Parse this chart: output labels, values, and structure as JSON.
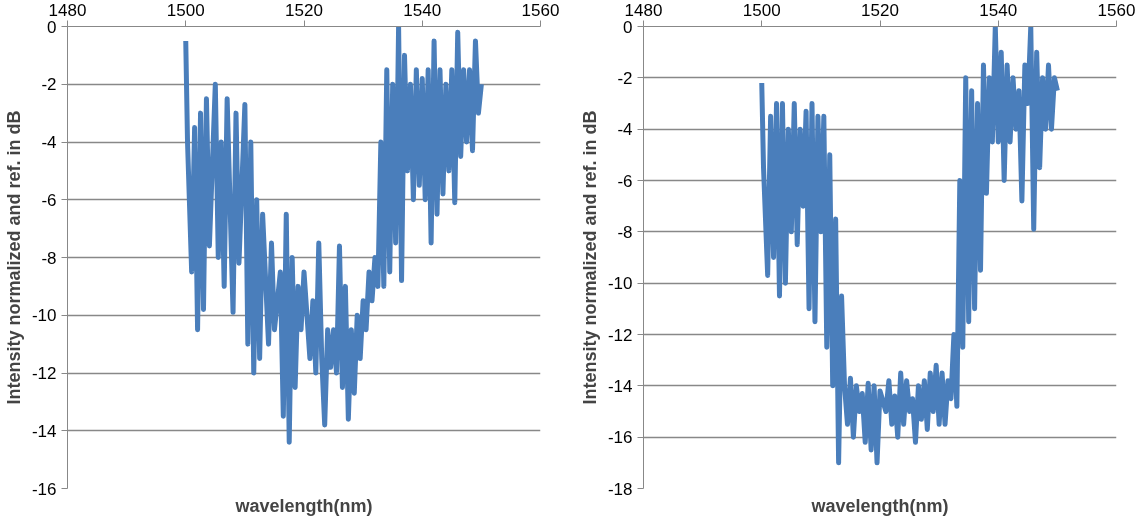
{
  "chart_data": [
    {
      "type": "line",
      "xlabel": "wavelength(nm)",
      "ylabel": "Intensity normalized and ref. in dB",
      "xlim": [
        1480,
        1560
      ],
      "xticks": [
        1480,
        1500,
        1520,
        1540,
        1560
      ],
      "ylim": [
        -16,
        0
      ],
      "yticks": [
        -16,
        -14,
        -12,
        -10,
        -8,
        -6,
        -4,
        -2,
        0
      ],
      "grid": "y",
      "x": [
        1500,
        1500.3,
        1501,
        1501.5,
        1502,
        1502.5,
        1503,
        1503.5,
        1504,
        1505,
        1505.5,
        1506,
        1506.5,
        1507,
        1508,
        1508.5,
        1509,
        1510,
        1510.5,
        1511,
        1511.5,
        1512,
        1512.5,
        1513,
        1514,
        1514.5,
        1515,
        1516,
        1516.5,
        1517,
        1517.5,
        1518,
        1518.5,
        1519,
        1519.5,
        1520,
        1521,
        1521.5,
        1522,
        1522.5,
        1523,
        1523.5,
        1524,
        1524.5,
        1525,
        1525.5,
        1526,
        1526.5,
        1527,
        1527.5,
        1528,
        1528.5,
        1529,
        1529.5,
        1530,
        1530.5,
        1531,
        1531.5,
        1532,
        1532.5,
        1533,
        1533.5,
        1534,
        1534.5,
        1535,
        1535.5,
        1536,
        1536.5,
        1537,
        1537.5,
        1538,
        1538.5,
        1539,
        1539.5,
        1540,
        1540.5,
        1541,
        1541.5,
        1542,
        1542.5,
        1543,
        1543.5,
        1544,
        1544.5,
        1545,
        1545.5,
        1546,
        1546.5,
        1547,
        1547.5,
        1548,
        1548.5,
        1549,
        1549.5,
        1550
      ],
      "series": [
        {
          "color": "#4a7ebb",
          "values": [
            -0.5,
            -4,
            -8.5,
            -3.5,
            -10.5,
            -3,
            -9.8,
            -2.5,
            -7.6,
            -2,
            -8,
            -4,
            -9,
            -2.5,
            -9.9,
            -3,
            -8.2,
            -2.7,
            -11,
            -4,
            -12,
            -6,
            -11.5,
            -6.5,
            -11,
            -7.5,
            -10.5,
            -8.5,
            -13.5,
            -6.5,
            -14.4,
            -8,
            -12.5,
            -9,
            -10.5,
            -8.5,
            -11.5,
            -9.5,
            -12,
            -7.5,
            -11.5,
            -13.8,
            -10.5,
            -11.8,
            -10.5,
            -12,
            -7.6,
            -12.5,
            -9,
            -13.6,
            -10.5,
            -12.7,
            -10,
            -11.5,
            -9.5,
            -10.5,
            -8.5,
            -9.5,
            -8,
            -9,
            -4,
            -9,
            -1.5,
            -8.5,
            -2,
            -7.5,
            0,
            -8.8,
            -1,
            -5,
            -2,
            -6,
            -1.5,
            -5.5,
            -1.8,
            -6,
            -1.5,
            -7.5,
            -0.5,
            -6.5,
            -1.5,
            -5.8,
            -2,
            -5,
            -1.5,
            -6.1,
            -0.2,
            -4.5,
            -1.5,
            -4,
            -1.5,
            -4.3,
            -0.5,
            -3,
            -2
          ]
        }
      ]
    },
    {
      "type": "line",
      "xlabel": "wavelength(nm)",
      "ylabel": "Intensity normalized and ref. in dB",
      "xlim": [
        1480,
        1560
      ],
      "xticks": [
        1480,
        1500,
        1520,
        1540,
        1560
      ],
      "ylim": [
        -18,
        0
      ],
      "yticks": [
        -18,
        -16,
        -14,
        -12,
        -10,
        -8,
        -6,
        -4,
        -2,
        0
      ],
      "grid": "y",
      "x": [
        1500,
        1500.3,
        1501,
        1501.5,
        1502,
        1502.5,
        1503,
        1503.5,
        1504,
        1504.5,
        1505,
        1505.5,
        1506,
        1506.5,
        1507,
        1507.5,
        1508,
        1508.5,
        1509,
        1509.5,
        1510,
        1510.5,
        1511,
        1511.5,
        1512,
        1512.5,
        1513,
        1513.5,
        1514,
        1514.5,
        1515,
        1515.5,
        1516,
        1516.5,
        1517,
        1517.5,
        1518,
        1518.5,
        1519,
        1519.5,
        1520,
        1521,
        1521.5,
        1522,
        1522.5,
        1523,
        1523.5,
        1524,
        1524.5,
        1525,
        1525.5,
        1526,
        1526.5,
        1527,
        1527.5,
        1528,
        1528.5,
        1529,
        1529.5,
        1530,
        1530.5,
        1531,
        1531.5,
        1532,
        1532.5,
        1533,
        1533.5,
        1534,
        1534.5,
        1535,
        1535.5,
        1536,
        1536.5,
        1537,
        1537.5,
        1538,
        1538.5,
        1539,
        1539.5,
        1540,
        1540.5,
        1541,
        1541.5,
        1542,
        1542.5,
        1543,
        1543.5,
        1544,
        1544.5,
        1545,
        1545.5,
        1546,
        1546.5,
        1547,
        1547.5,
        1548,
        1548.5,
        1549,
        1549.5,
        1550
      ],
      "series": [
        {
          "color": "#4a7ebb",
          "values": [
            -2.2,
            -5.5,
            -9.7,
            -3.5,
            -9,
            -3,
            -10.5,
            -3,
            -10,
            -4,
            -8,
            -3,
            -8.5,
            -4,
            -7,
            -3.3,
            -11,
            -3,
            -11.5,
            -3.5,
            -8,
            -3.5,
            -12.5,
            -5,
            -14,
            -7.5,
            -17,
            -10.5,
            -14,
            -15.5,
            -13.7,
            -16,
            -14,
            -15,
            -14.3,
            -16.2,
            -13.9,
            -16.5,
            -14,
            -17,
            -14.2,
            -15,
            -13.8,
            -15.5,
            -14.4,
            -16,
            -13.5,
            -15.5,
            -13.8,
            -15,
            -14.5,
            -16.2,
            -14,
            -15.3,
            -13.8,
            -15.7,
            -13.5,
            -15,
            -13.2,
            -15.5,
            -13.5,
            -15.5,
            -13.8,
            -14.5,
            -12,
            -14.8,
            -6,
            -12.5,
            -2,
            -11.5,
            -2.5,
            -11,
            -3,
            -9.5,
            -1.5,
            -6.5,
            -2,
            -4.5,
            0,
            -4.5,
            -1,
            -6,
            -1.5,
            -4.5,
            -2,
            -4,
            -2.5,
            -6.8,
            -1.5,
            -3,
            0,
            -7.9,
            -1,
            -5.5,
            -2,
            -4,
            -1.5,
            -4,
            -2,
            -2.5
          ]
        }
      ]
    }
  ]
}
